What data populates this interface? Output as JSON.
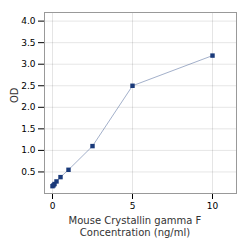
{
  "chart_data": {
    "type": "line",
    "xlabel": "Mouse Crystallin gamma F\nConcentration (ng/ml)",
    "ylabel": "OD",
    "x": [
      0,
      0.063,
      0.125,
      0.25,
      0.5,
      1.0,
      2.5,
      5.0,
      10.0
    ],
    "values": [
      0.17,
      0.19,
      0.22,
      0.28,
      0.38,
      0.55,
      1.1,
      2.5,
      3.2
    ],
    "color": "#1a3a7a",
    "marker": "square",
    "xlim": [
      -0.5,
      11.5
    ],
    "ylim": [
      0,
      4.2
    ],
    "xticks": [
      0,
      5,
      10
    ],
    "yticks": [
      0.5,
      {
        "value": 1.0,
        "label": "1.0"
      },
      1.5,
      {
        "value": 2.0,
        "label": "2.0"
      },
      2.5,
      {
        "value": 3.0,
        "label": "3.0"
      },
      3.5,
      {
        "value": 4.0,
        "label": "4.0"
      }
    ],
    "grid": true
  }
}
